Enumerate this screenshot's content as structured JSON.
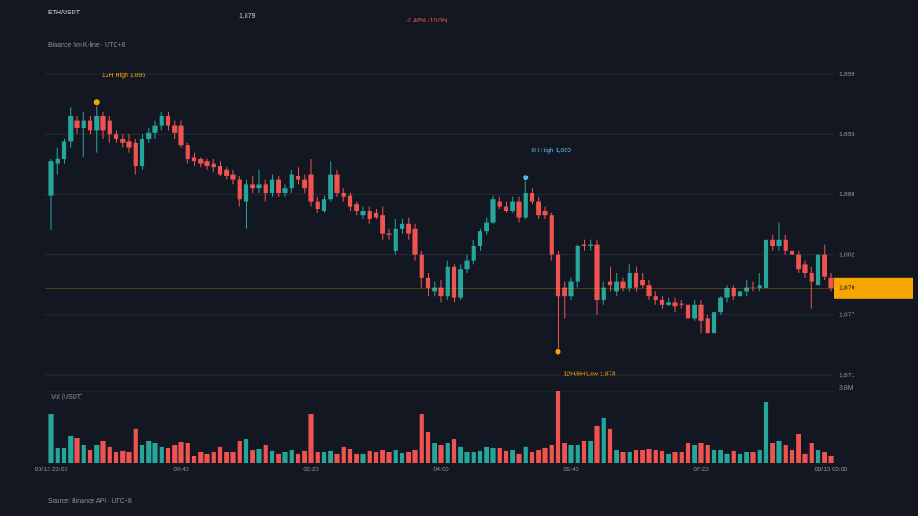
{
  "header": {
    "symbol": "ETH/USDT",
    "price": "1,879",
    "change": "-0.46% (10.0h)",
    "subtitle": "Binance 5m K-line · UTC+8",
    "source": "Source: Binance API · UTC+8"
  },
  "chart_data": {
    "type": "candlestick",
    "up_color": "#26a69a",
    "down_color": "#ef5350",
    "categories": [
      "08/12 23:00",
      null,
      null,
      null,
      null,
      null,
      null,
      null,
      null,
      null,
      null,
      null,
      null,
      null,
      null,
      null,
      null,
      null,
      null,
      null,
      "00:40",
      null,
      null,
      null,
      null,
      null,
      null,
      null,
      null,
      null,
      null,
      null,
      null,
      null,
      null,
      null,
      null,
      null,
      null,
      null,
      "02:20",
      null,
      null,
      null,
      null,
      null,
      null,
      null,
      null,
      null,
      null,
      null,
      null,
      null,
      null,
      null,
      null,
      null,
      null,
      null,
      "04:00",
      null,
      null,
      null,
      null,
      null,
      null,
      null,
      null,
      null,
      null,
      null,
      null,
      null,
      null,
      null,
      null,
      null,
      null,
      null,
      "05:40",
      null,
      null,
      null,
      null,
      null,
      null,
      null,
      null,
      null,
      null,
      null,
      null,
      null,
      null,
      null,
      null,
      null,
      null,
      null,
      "07:20",
      null,
      null,
      null,
      null,
      null,
      null,
      null,
      null,
      null,
      null,
      null,
      null,
      null,
      null,
      null,
      null,
      null,
      null,
      null,
      "08/13 09:00"
    ],
    "open": [
      1887.7,
      1890.7,
      1891.1,
      1892.8,
      1894.7,
      1894.0,
      1894.7,
      1893.8,
      1895.1,
      1894.7,
      1893.4,
      1893.0,
      1892.8,
      1892.6,
      1890.5,
      1893.0,
      1893.6,
      1894.2,
      1895.1,
      1894.2,
      1894.2,
      1892.4,
      1891.3,
      1891.1,
      1890.9,
      1890.7,
      1890.5,
      1890.1,
      1889.7,
      1889.2,
      1887.2,
      1888.8,
      1888.4,
      1888.8,
      1888.0,
      1889.2,
      1888.0,
      1888.4,
      1889.5,
      1889.2,
      1889.7,
      1887.2,
      1886.3,
      1887.4,
      1889.7,
      1888.0,
      1887.7,
      1886.9,
      1885.9,
      1886.3,
      1886.1,
      1885.9,
      1884.2,
      1882.6,
      1884.6,
      1885.1,
      1884.6,
      1882.2,
      1880.1,
      1878.8,
      1879.2,
      1878.4,
      1881.1,
      1878.2,
      1880.9,
      1881.7,
      1883.0,
      1884.4,
      1885.2,
      1887.2,
      1886.7,
      1886.3,
      1887.2,
      1885.7,
      1888.0,
      1887.2,
      1886.3,
      1885.9,
      1882.2,
      1879.2,
      1878.4,
      1879.7,
      1883.2,
      1883.0,
      1883.2,
      1878.0,
      1879.7,
      1878.8,
      1879.7,
      1879.1,
      1880.5,
      1879.9,
      1879.4,
      1878.4,
      1878.0,
      1877.6,
      1877.8,
      1877.7,
      1877.6,
      1876.3,
      1877.6,
      1876.3,
      1874.9,
      1876.9,
      1878.2,
      1879.1,
      1878.4,
      1878.8,
      1879.2,
      1879.1,
      1879.1,
      1883.6,
      1883.0,
      1883.6,
      1882.6,
      1882.2,
      1881.3,
      1880.5,
      1879.4,
      1882.2,
      1880.1
    ],
    "high": [
      1891.1,
      1892.2,
      1893.0,
      1895.9,
      1895.1,
      1895.5,
      1895.1,
      1896.4,
      1895.5,
      1895.1,
      1893.8,
      1893.4,
      1893.4,
      1893.0,
      1893.4,
      1894.0,
      1894.7,
      1895.5,
      1895.5,
      1894.7,
      1894.7,
      1892.6,
      1891.7,
      1891.3,
      1891.2,
      1891.1,
      1890.9,
      1890.4,
      1890.1,
      1889.5,
      1889.2,
      1889.5,
      1890.1,
      1889.2,
      1889.7,
      1889.5,
      1888.8,
      1890.1,
      1890.4,
      1889.7,
      1891.1,
      1887.6,
      1887.7,
      1890.9,
      1890.1,
      1888.4,
      1888.0,
      1887.2,
      1886.7,
      1886.7,
      1886.5,
      1886.7,
      1884.6,
      1885.5,
      1885.5,
      1885.7,
      1885.1,
      1882.6,
      1880.5,
      1879.7,
      1879.9,
      1881.7,
      1881.3,
      1881.3,
      1882.2,
      1883.6,
      1884.6,
      1885.7,
      1887.7,
      1887.6,
      1887.2,
      1887.6,
      1887.6,
      1889.4,
      1888.4,
      1887.6,
      1886.7,
      1886.1,
      1882.6,
      1879.7,
      1880.1,
      1883.2,
      1883.6,
      1883.6,
      1883.6,
      1879.7,
      1881.1,
      1880.5,
      1880.1,
      1881.3,
      1881.1,
      1880.5,
      1879.9,
      1878.8,
      1878.4,
      1878.2,
      1878.2,
      1878.0,
      1878.0,
      1878.0,
      1878.0,
      1876.6,
      1877.2,
      1878.4,
      1879.4,
      1879.4,
      1879.2,
      1879.9,
      1879.7,
      1880.5,
      1884.1,
      1884.1,
      1885.2,
      1884.1,
      1883.0,
      1882.6,
      1881.7,
      1881.1,
      1882.6,
      1883.2,
      1880.5
    ],
    "low": [
      1884.5,
      1889.7,
      1890.7,
      1892.2,
      1893.4,
      1891.3,
      1893.4,
      1891.7,
      1893.0,
      1892.6,
      1892.6,
      1892.2,
      1891.7,
      1889.7,
      1890.1,
      1892.6,
      1893.0,
      1893.8,
      1893.8,
      1893.0,
      1892.2,
      1890.7,
      1890.5,
      1890.4,
      1890.1,
      1889.9,
      1889.5,
      1889.2,
      1888.8,
      1886.7,
      1884.6,
      1888.0,
      1888.0,
      1887.2,
      1887.6,
      1887.6,
      1887.6,
      1888.0,
      1888.8,
      1888.0,
      1886.7,
      1886.1,
      1886.1,
      1887.2,
      1887.6,
      1887.2,
      1886.3,
      1885.9,
      1885.5,
      1885.1,
      1885.5,
      1883.6,
      1883.6,
      1882.2,
      1884.2,
      1883.6,
      1881.7,
      1879.2,
      1878.4,
      1878.4,
      1877.8,
      1878.0,
      1877.8,
      1878.0,
      1880.5,
      1881.3,
      1882.6,
      1884.1,
      1885.1,
      1886.5,
      1886.1,
      1886.1,
      1885.2,
      1885.5,
      1886.9,
      1885.5,
      1885.5,
      1881.7,
      1873.2,
      1876.3,
      1878.0,
      1879.2,
      1882.6,
      1882.6,
      1876.6,
      1877.6,
      1878.8,
      1878.4,
      1878.8,
      1878.8,
      1878.8,
      1879.1,
      1878.0,
      1877.6,
      1877.2,
      1877.4,
      1876.9,
      1877.2,
      1876.1,
      1876.1,
      1874.9,
      1874.9,
      1874.9,
      1876.6,
      1877.8,
      1878.0,
      1878.0,
      1878.4,
      1878.8,
      1878.8,
      1878.8,
      1882.6,
      1882.6,
      1882.2,
      1881.7,
      1880.5,
      1880.1,
      1877.2,
      1879.1,
      1879.9,
      1878.8
    ],
    "close": [
      1890.9,
      1891.2,
      1892.8,
      1895.1,
      1894.0,
      1894.7,
      1893.8,
      1895.1,
      1893.8,
      1893.4,
      1893.0,
      1892.6,
      1892.2,
      1890.5,
      1893.0,
      1893.6,
      1894.2,
      1895.1,
      1894.2,
      1893.6,
      1892.4,
      1891.1,
      1890.9,
      1890.7,
      1890.5,
      1890.4,
      1889.7,
      1889.5,
      1889.2,
      1887.4,
      1888.8,
      1888.4,
      1888.8,
      1888.0,
      1889.2,
      1888.0,
      1888.4,
      1889.7,
      1889.2,
      1888.4,
      1887.2,
      1886.5,
      1887.4,
      1889.7,
      1888.0,
      1887.6,
      1886.7,
      1886.3,
      1886.3,
      1885.5,
      1885.7,
      1884.2,
      1884.1,
      1884.6,
      1885.1,
      1884.2,
      1882.2,
      1880.1,
      1879.1,
      1879.2,
      1878.4,
      1881.1,
      1878.2,
      1880.9,
      1881.7,
      1883.0,
      1884.4,
      1885.2,
      1887.4,
      1886.7,
      1886.3,
      1887.2,
      1885.7,
      1888.0,
      1887.2,
      1885.9,
      1885.9,
      1882.2,
      1878.4,
      1878.4,
      1879.7,
      1883.0,
      1883.0,
      1883.2,
      1878.0,
      1879.2,
      1879.4,
      1879.7,
      1879.1,
      1880.5,
      1879.2,
      1879.4,
      1878.4,
      1878.0,
      1877.6,
      1877.8,
      1877.4,
      1877.6,
      1876.3,
      1877.6,
      1876.1,
      1874.9,
      1876.9,
      1878.2,
      1879.1,
      1878.4,
      1878.8,
      1879.2,
      1879.1,
      1879.4,
      1883.6,
      1883.0,
      1883.6,
      1882.6,
      1882.2,
      1880.9,
      1880.5,
      1879.7,
      1882.2,
      1880.2,
      1879.1
    ],
    "ylim": [
      1871,
      1899
    ],
    "yticks": [
      {
        "value": 1871.0,
        "label": "1,871"
      },
      {
        "value": 1876.6,
        "label": "1,877"
      },
      {
        "value": 1882.2,
        "label": "1,882"
      },
      {
        "value": 1887.8,
        "label": "1,888"
      },
      {
        "value": 1893.4,
        "label": "1,893"
      },
      {
        "value": 1899.0,
        "label": "1,899"
      }
    ],
    "grid": true,
    "price_line": {
      "value": 1879.1,
      "label": "1,879",
      "color": "#f7a600"
    },
    "annotations": [
      {
        "label": "12H High 1,896",
        "value": 1896.4,
        "at": "high",
        "color": "#f7a600"
      },
      {
        "label": "6H High 1,889",
        "value": 1889.4,
        "at": "high",
        "color": "#5ab4e5"
      },
      {
        "label": "12H/6H Low 1,873",
        "value": 1873.2,
        "at": "low",
        "color": "#f7a600"
      }
    ],
    "volume_label": "Vol (USDT)",
    "volume": [
      2.61,
      0.81,
      0.81,
      1.43,
      1.33,
      0.95,
      0.71,
      0.95,
      1.19,
      0.86,
      0.57,
      0.67,
      0.57,
      1.81,
      0.95,
      1.19,
      1.05,
      0.86,
      0.81,
      0.95,
      1.14,
      1.05,
      0.38,
      0.57,
      0.48,
      0.57,
      0.86,
      0.57,
      0.57,
      1.19,
      1.28,
      0.71,
      0.76,
      0.95,
      0.67,
      0.48,
      0.57,
      0.71,
      0.48,
      0.67,
      2.61,
      0.57,
      0.62,
      0.67,
      0.48,
      0.86,
      0.76,
      0.48,
      0.48,
      0.67,
      0.57,
      0.71,
      0.57,
      0.71,
      0.52,
      0.62,
      0.71,
      2.61,
      1.66,
      1.05,
      0.95,
      1.05,
      1.28,
      0.86,
      0.57,
      0.57,
      0.67,
      0.86,
      0.81,
      0.81,
      0.67,
      0.71,
      0.48,
      0.86,
      0.57,
      0.71,
      0.81,
      0.95,
      3.8,
      1.05,
      0.95,
      0.95,
      1.19,
      1.19,
      2.0,
      2.38,
      1.81,
      0.71,
      0.57,
      0.57,
      0.71,
      0.71,
      0.76,
      0.71,
      0.67,
      0.48,
      0.57,
      0.57,
      1.05,
      0.95,
      1.05,
      0.95,
      0.71,
      0.71,
      0.48,
      0.67,
      0.48,
      0.57,
      0.57,
      0.71,
      3.23,
      1.05,
      1.19,
      0.95,
      0.71,
      1.52,
      0.48,
      1.05,
      0.71,
      0.57,
      0.38
    ],
    "volume_ylim": [
      0,
      3.8
    ],
    "volume_yticks": [
      {
        "value": 3.8,
        "label": "3.8M"
      }
    ]
  }
}
